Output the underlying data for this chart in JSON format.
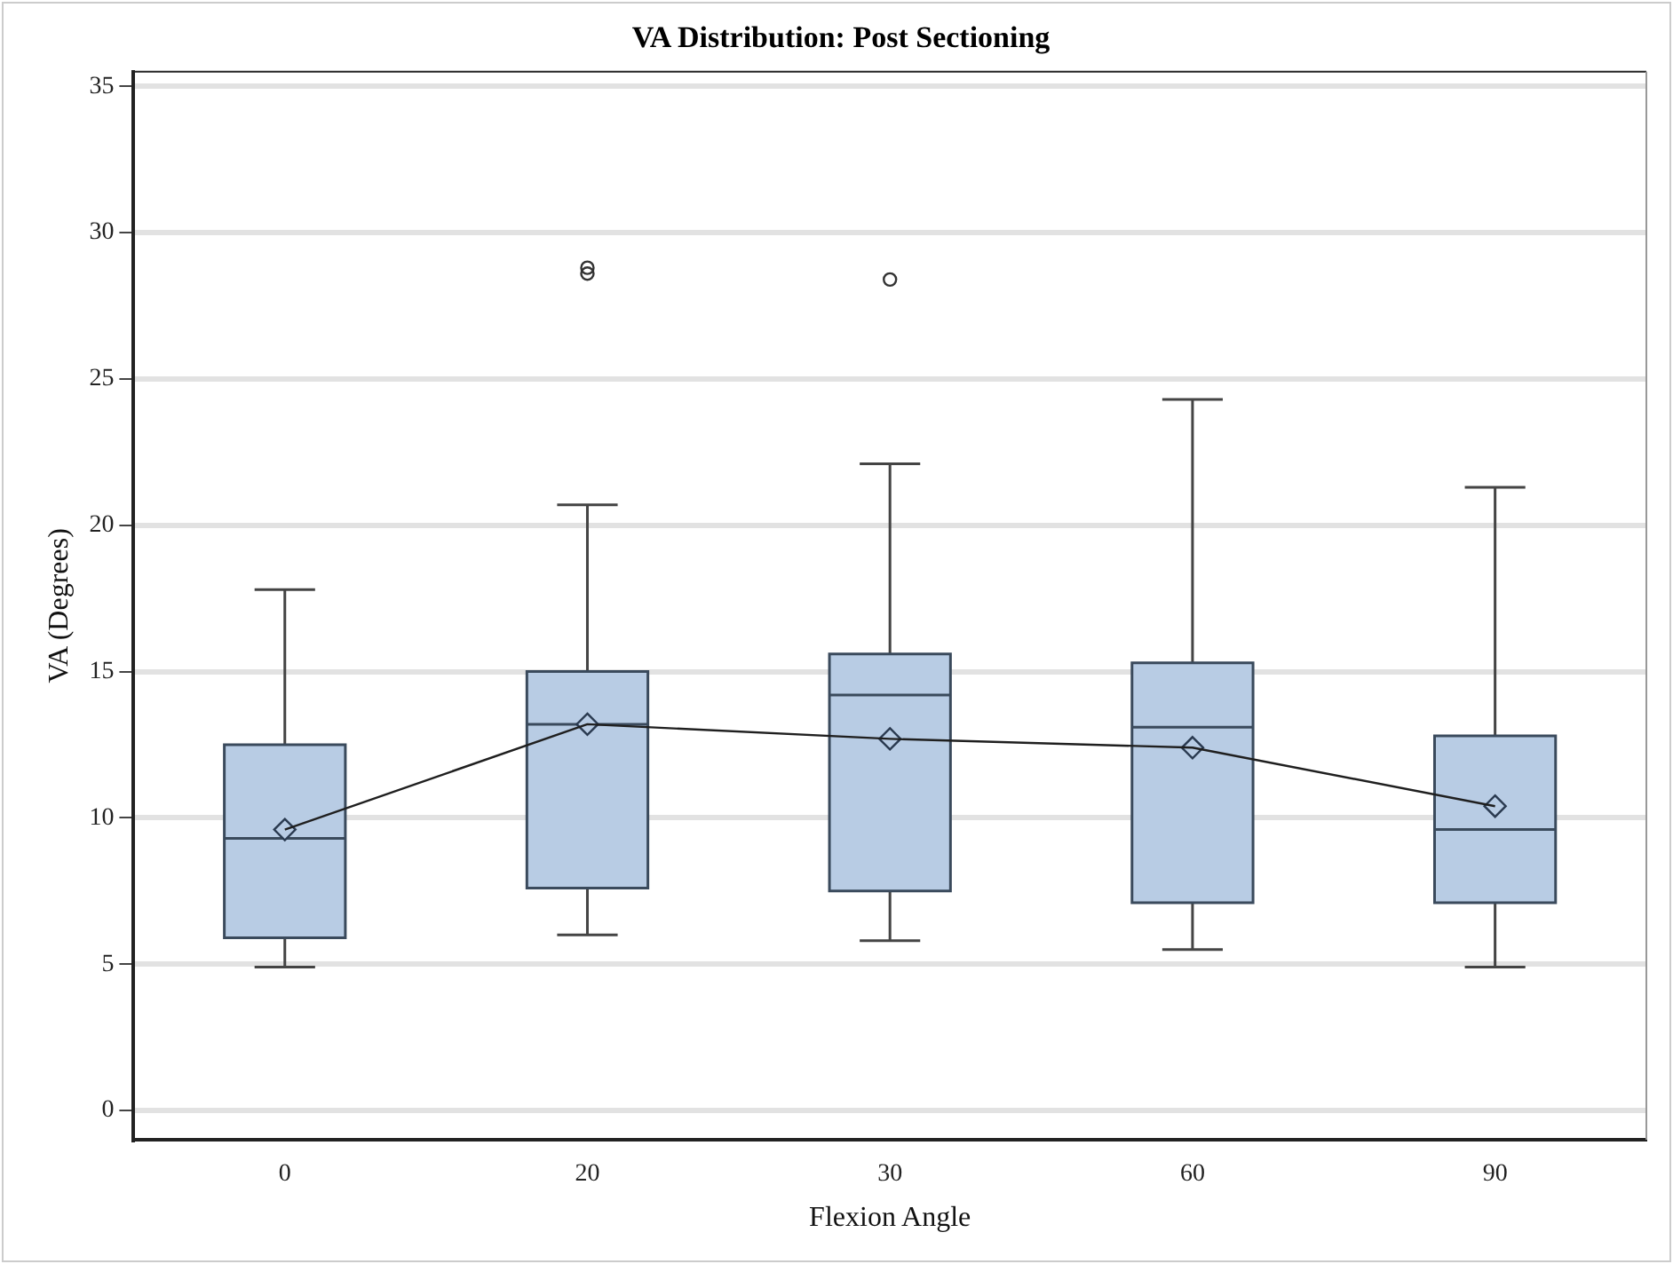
{
  "chart_data": {
    "type": "box",
    "title": "VA Distribution: Post Sectioning",
    "xlabel": "Flexion Angle",
    "ylabel": "VA (Degrees)",
    "categories": [
      "0",
      "20",
      "30",
      "60",
      "90"
    ],
    "ylim": [
      -1,
      35.5
    ],
    "yticks": [
      0,
      5,
      10,
      15,
      20,
      25,
      30,
      35
    ],
    "grid": "y",
    "legend": false,
    "series": [
      {
        "color": "#b8cce4",
        "boxes": [
          {
            "low": 4.9,
            "q1": 5.9,
            "median": 9.3,
            "q3": 12.5,
            "high": 17.8,
            "mean": 9.6
          },
          {
            "low": 6.0,
            "q1": 7.6,
            "median": 13.2,
            "q3": 15.0,
            "high": 20.7,
            "mean": 13.2,
            "outliers": [
              28.6,
              28.8
            ]
          },
          {
            "low": 5.8,
            "q1": 7.5,
            "median": 14.2,
            "q3": 15.6,
            "high": 22.1,
            "mean": 12.7,
            "outliers": [
              28.4
            ]
          },
          {
            "low": 5.5,
            "q1": 7.1,
            "median": 13.1,
            "q3": 15.3,
            "high": 24.3,
            "mean": 12.4
          },
          {
            "low": 4.9,
            "q1": 7.1,
            "median": 9.6,
            "q3": 12.8,
            "high": 21.3,
            "mean": 10.4
          }
        ]
      },
      {
        "type": "line",
        "color": "#1f1f1f",
        "marker": "none",
        "values": [
          9.6,
          13.2,
          12.7,
          12.4,
          10.4
        ]
      }
    ]
  }
}
